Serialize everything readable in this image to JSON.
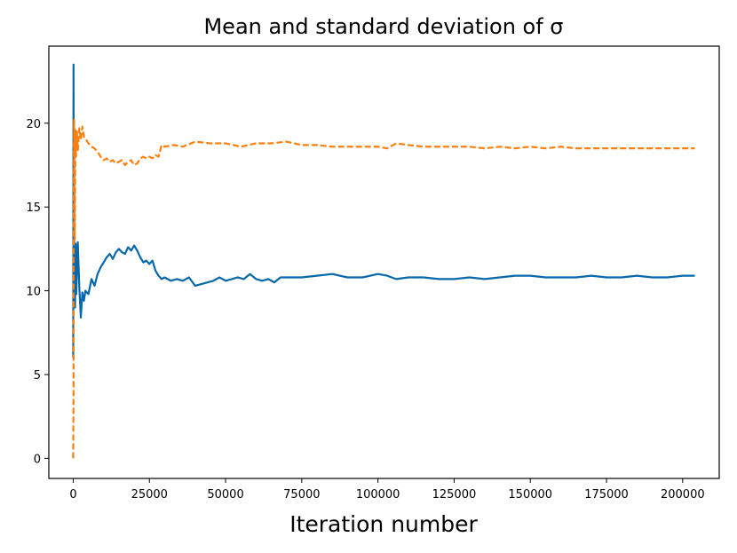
{
  "chart_data": {
    "type": "line",
    "title": "Mean and standard deviation of σ",
    "xlabel": "Iteration number",
    "ylabel": "",
    "xlim": [
      -8000,
      212000
    ],
    "ylim": [
      -1.2,
      24.6
    ],
    "xticks": [
      0,
      25000,
      50000,
      75000,
      100000,
      125000,
      150000,
      175000,
      200000
    ],
    "yticks": [
      0,
      5,
      10,
      15,
      20
    ],
    "grid": false,
    "legend": "none",
    "series": [
      {
        "name": "mean",
        "color": "#0868ac",
        "style": "solid",
        "x": [
          0,
          100,
          200,
          400,
          600,
          800,
          1000,
          1500,
          2000,
          2500,
          3000,
          3500,
          4000,
          5000,
          6000,
          7000,
          8000,
          9000,
          10000,
          11000,
          12000,
          13000,
          14000,
          15000,
          16000,
          17000,
          18000,
          19000,
          20000,
          21000,
          22000,
          23000,
          24000,
          25000,
          26000,
          27000,
          28000,
          29000,
          30000,
          32000,
          34000,
          36000,
          38000,
          40000,
          42000,
          44000,
          46000,
          48000,
          50000,
          52000,
          54000,
          56000,
          58000,
          60000,
          62000,
          64000,
          66000,
          68000,
          70000,
          75000,
          80000,
          85000,
          90000,
          95000,
          100000,
          103000,
          106000,
          110000,
          115000,
          120000,
          125000,
          130000,
          135000,
          140000,
          145000,
          150000,
          155000,
          160000,
          165000,
          170000,
          175000,
          180000,
          185000,
          190000,
          195000,
          200000,
          204000
        ],
        "values": [
          6.0,
          23.5,
          15.0,
          10.5,
          9.0,
          12.8,
          9.8,
          12.9,
          10.2,
          8.4,
          9.9,
          9.4,
          10.0,
          9.8,
          10.7,
          10.3,
          11.0,
          11.4,
          11.7,
          12.0,
          12.2,
          11.9,
          12.3,
          12.5,
          12.3,
          12.2,
          12.6,
          12.4,
          12.7,
          12.4,
          12.0,
          11.7,
          11.8,
          11.6,
          11.8,
          11.2,
          10.9,
          10.7,
          10.8,
          10.6,
          10.7,
          10.6,
          10.8,
          10.3,
          10.4,
          10.5,
          10.6,
          10.8,
          10.6,
          10.7,
          10.8,
          10.7,
          11.0,
          10.7,
          10.6,
          10.7,
          10.5,
          10.8,
          10.8,
          10.8,
          10.9,
          11.0,
          10.8,
          10.8,
          11.0,
          10.9,
          10.7,
          10.8,
          10.8,
          10.7,
          10.7,
          10.8,
          10.7,
          10.8,
          10.9,
          10.9,
          10.8,
          10.8,
          10.8,
          10.9,
          10.8,
          10.8,
          10.9,
          10.8,
          10.8,
          10.9,
          10.9
        ]
      },
      {
        "name": "standard deviation",
        "color": "#ff7f0e",
        "style": "dashed",
        "x": [
          0,
          100,
          200,
          300,
          500,
          700,
          900,
          1200,
          1500,
          2000,
          2500,
          3000,
          3500,
          4000,
          5000,
          6000,
          7000,
          8000,
          9000,
          10000,
          11000,
          12000,
          13000,
          14000,
          15000,
          16000,
          17000,
          18000,
          19000,
          20000,
          21000,
          22000,
          23000,
          24000,
          25000,
          26000,
          27000,
          28000,
          29000,
          30000,
          33000,
          36000,
          40000,
          45000,
          50000,
          55000,
          60000,
          65000,
          70000,
          75000,
          80000,
          85000,
          90000,
          95000,
          100000,
          103000,
          106000,
          110000,
          115000,
          120000,
          125000,
          130000,
          135000,
          140000,
          145000,
          150000,
          155000,
          160000,
          165000,
          170000,
          175000,
          180000,
          185000,
          190000,
          195000,
          200000,
          204000
        ],
        "values": [
          0.0,
          4.0,
          17.5,
          20.2,
          13.0,
          19.6,
          18.0,
          19.5,
          18.4,
          19.7,
          19.0,
          19.8,
          19.2,
          19.1,
          18.8,
          18.6,
          18.5,
          18.3,
          18.0,
          17.8,
          17.9,
          17.7,
          17.8,
          17.6,
          17.7,
          17.8,
          17.5,
          17.7,
          17.8,
          17.5,
          17.6,
          17.9,
          18.0,
          17.9,
          18.0,
          17.9,
          18.1,
          18.0,
          18.7,
          18.6,
          18.7,
          18.6,
          18.9,
          18.8,
          18.8,
          18.6,
          18.8,
          18.8,
          18.9,
          18.7,
          18.7,
          18.6,
          18.6,
          18.6,
          18.6,
          18.5,
          18.8,
          18.7,
          18.6,
          18.6,
          18.6,
          18.6,
          18.5,
          18.6,
          18.5,
          18.6,
          18.5,
          18.6,
          18.5,
          18.5,
          18.5,
          18.5,
          18.5,
          18.5,
          18.5,
          18.5,
          18.5
        ]
      }
    ]
  }
}
